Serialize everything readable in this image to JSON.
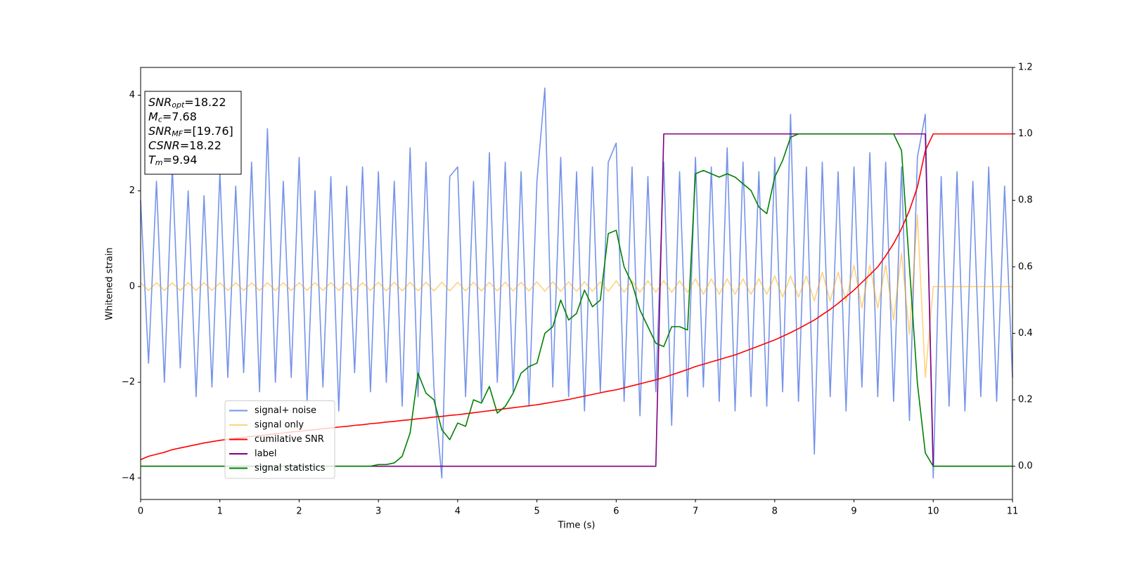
{
  "chart_data": {
    "type": "line",
    "xlabel": "Time (s)",
    "ylabel": "Whitened strain",
    "xlim": [
      0,
      11
    ],
    "xticks": [
      0,
      1,
      2,
      3,
      4,
      5,
      6,
      7,
      8,
      9,
      10,
      11
    ],
    "ylim": [
      -4.45,
      4.58
    ],
    "yticks": [
      {
        "value": -4,
        "label": "−4"
      },
      {
        "value": -2,
        "label": "−2"
      },
      0,
      2,
      4
    ],
    "y2lim": [
      -0.1,
      1.2
    ],
    "y2ticks": [
      {
        "value": 0,
        "label": "0.0"
      },
      0.2,
      0.4,
      0.6,
      0.8,
      {
        "value": 1,
        "label": "1.0"
      },
      1.2
    ],
    "legend": "lower left",
    "annotations": [
      {
        "main": "SNR",
        "sub": "opt",
        "text": "=18.22"
      },
      {
        "main": "M",
        "sub": "c",
        "text": "=7.68"
      },
      {
        "main": "SNR",
        "sub": "MF",
        "text": "=[19.76]"
      },
      {
        "main": "CSNR",
        "text": "=18.22"
      },
      {
        "main": "T",
        "sub": "m",
        "text": "=9.94"
      }
    ],
    "x": [
      0,
      0.1,
      0.2,
      0.3,
      0.4,
      0.5,
      0.6,
      0.7,
      0.8,
      0.9,
      1,
      1.1,
      1.2,
      1.3,
      1.4,
      1.5,
      1.6,
      1.7,
      1.8,
      1.9,
      2,
      2.1,
      2.2,
      2.3,
      2.4,
      2.5,
      2.6,
      2.7,
      2.8,
      2.9,
      3,
      3.1,
      3.2,
      3.3,
      3.4,
      3.5,
      3.6,
      3.7,
      3.8,
      3.9,
      4,
      4.1,
      4.2,
      4.3,
      4.4,
      4.5,
      4.6,
      4.7,
      4.8,
      4.9,
      5,
      5.1,
      5.2,
      5.3,
      5.4,
      5.5,
      5.6,
      5.7,
      5.8,
      5.9,
      6,
      6.1,
      6.2,
      6.3,
      6.4,
      6.5,
      6.6,
      6.7,
      6.8,
      6.9,
      7,
      7.1,
      7.2,
      7.3,
      7.4,
      7.5,
      7.6,
      7.7,
      7.8,
      7.9,
      8,
      8.1,
      8.2,
      8.3,
      8.4,
      8.5,
      8.6,
      8.7,
      8.8,
      8.9,
      9,
      9.1,
      9.2,
      9.3,
      9.4,
      9.5,
      9.6,
      9.7,
      9.8,
      9.9,
      10,
      10.1,
      10.2,
      10.3,
      10.4,
      10.5,
      10.6,
      10.7,
      10.8,
      10.9,
      11
    ],
    "series": [
      {
        "name": "signal+ noise",
        "color": "#4169e1",
        "alpha": 0.72,
        "values": [
          1.8,
          -1.6,
          2.2,
          -2.0,
          2.5,
          -1.7,
          2.0,
          -2.3,
          1.9,
          -2.1,
          2.4,
          -1.9,
          2.1,
          -1.8,
          2.6,
          -2.2,
          3.3,
          -2.0,
          2.2,
          -1.9,
          2.7,
          -2.4,
          2.0,
          -2.1,
          2.3,
          -2.6,
          2.1,
          -1.8,
          2.5,
          -2.2,
          2.4,
          -2.0,
          2.2,
          -2.5,
          2.9,
          -2.3,
          2.6,
          -2.1,
          -4.0,
          2.3,
          2.5,
          -2.3,
          2.2,
          -2.4,
          2.8,
          -2.0,
          2.6,
          -2.2,
          2.4,
          -2.5,
          2.2,
          4.15,
          -2.1,
          2.7,
          -2.3,
          2.4,
          -2.6,
          2.5,
          -2.2,
          2.6,
          3.0,
          -2.4,
          2.5,
          -2.7,
          2.3,
          -2.2,
          2.6,
          -2.9,
          2.4,
          -2.3,
          2.7,
          -2.1,
          2.5,
          -2.4,
          2.9,
          -2.6,
          2.6,
          -2.3,
          2.4,
          -2.5,
          2.7,
          -2.2,
          3.6,
          -2.4,
          2.5,
          -3.5,
          2.6,
          -2.3,
          2.4,
          -2.6,
          2.5,
          -2.1,
          2.8,
          -2.3,
          2.6,
          -2.4,
          2.5,
          -2.8,
          2.7,
          3.6,
          -4.0,
          2.3,
          -2.5,
          2.4,
          -2.6,
          2.2,
          -2.3,
          2.5,
          -2.4,
          2.1,
          -1.9
        ]
      },
      {
        "name": "signal only",
        "color": "#ffa500",
        "alpha": 0.5,
        "values": [
          0.08,
          -0.08,
          0.08,
          -0.08,
          0.08,
          -0.08,
          0.08,
          -0.08,
          0.08,
          -0.08,
          0.08,
          -0.08,
          0.08,
          -0.08,
          0.08,
          -0.08,
          0.08,
          -0.08,
          0.08,
          -0.08,
          0.08,
          -0.08,
          0.08,
          -0.08,
          0.08,
          -0.08,
          0.08,
          -0.08,
          0.08,
          -0.08,
          0.09,
          -0.09,
          0.09,
          -0.09,
          0.09,
          -0.09,
          0.09,
          -0.09,
          0.09,
          -0.09,
          0.09,
          -0.09,
          0.09,
          -0.09,
          0.09,
          -0.09,
          0.09,
          -0.09,
          0.09,
          -0.09,
          0.1,
          -0.1,
          0.1,
          -0.1,
          0.1,
          -0.1,
          0.1,
          -0.1,
          0.1,
          -0.1,
          0.12,
          -0.12,
          0.12,
          -0.12,
          0.12,
          -0.12,
          0.12,
          -0.12,
          0.12,
          -0.12,
          0.16,
          -0.16,
          0.16,
          -0.16,
          0.16,
          -0.16,
          0.16,
          -0.16,
          0.16,
          -0.16,
          0.22,
          -0.22,
          0.22,
          -0.22,
          0.22,
          -0.3,
          0.3,
          -0.3,
          0.3,
          -0.3,
          0.45,
          -0.45,
          0.45,
          -0.45,
          0.45,
          -0.7,
          0.7,
          -1.0,
          1.5,
          -1.9,
          0,
          0,
          0,
          0,
          0,
          0,
          0,
          0,
          0,
          0,
          0
        ]
      },
      {
        "name": "cumilative SNR",
        "color": "#ff0000",
        "axis": "y2",
        "values": [
          0.02,
          0.03,
          0.036,
          0.042,
          0.05,
          0.055,
          0.06,
          0.065,
          0.07,
          0.074,
          0.078,
          0.081,
          0.084,
          0.087,
          0.09,
          0.092,
          0.095,
          0.098,
          0.1,
          0.103,
          0.105,
          0.108,
          0.11,
          0.113,
          0.115,
          0.118,
          0.12,
          0.123,
          0.125,
          0.128,
          0.13,
          0.133,
          0.135,
          0.138,
          0.14,
          0.143,
          0.145,
          0.148,
          0.15,
          0.153,
          0.155,
          0.158,
          0.161,
          0.164,
          0.167,
          0.17,
          0.173,
          0.176,
          0.179,
          0.182,
          0.185,
          0.189,
          0.193,
          0.197,
          0.201,
          0.206,
          0.211,
          0.216,
          0.221,
          0.226,
          0.23,
          0.236,
          0.242,
          0.248,
          0.254,
          0.26,
          0.267,
          0.275,
          0.283,
          0.291,
          0.3,
          0.307,
          0.314,
          0.321,
          0.328,
          0.335,
          0.344,
          0.353,
          0.362,
          0.371,
          0.38,
          0.391,
          0.402,
          0.414,
          0.427,
          0.44,
          0.456,
          0.472,
          0.49,
          0.51,
          0.53,
          0.553,
          0.576,
          0.6,
          0.633,
          0.67,
          0.715,
          0.77,
          0.84,
          0.95,
          1,
          1,
          1,
          1,
          1,
          1,
          1,
          1,
          1,
          1,
          1
        ]
      },
      {
        "name": "label",
        "color": "#800080",
        "axis": "y2",
        "values": [
          0,
          0,
          0,
          0,
          0,
          0,
          0,
          0,
          0,
          0,
          0,
          0,
          0,
          0,
          0,
          0,
          0,
          0,
          0,
          0,
          0,
          0,
          0,
          0,
          0,
          0,
          0,
          0,
          0,
          0,
          0,
          0,
          0,
          0,
          0,
          0,
          0,
          0,
          0,
          0,
          0,
          0,
          0,
          0,
          0,
          0,
          0,
          0,
          0,
          0,
          0,
          0,
          0,
          0,
          0,
          0,
          0,
          0,
          0,
          0,
          0,
          0,
          0,
          0,
          0,
          0,
          1,
          1,
          1,
          1,
          1,
          1,
          1,
          1,
          1,
          1,
          1,
          1,
          1,
          1,
          1,
          1,
          1,
          1,
          1,
          1,
          1,
          1,
          1,
          1,
          1,
          1,
          1,
          1,
          1,
          1,
          1,
          1,
          1,
          1,
          0,
          0,
          0,
          0,
          0,
          0,
          0,
          0,
          0,
          0,
          0
        ]
      },
      {
        "name": "signal statistics",
        "color": "#008000",
        "axis": "y2",
        "values": [
          0,
          0,
          0,
          0,
          0,
          0,
          0,
          0,
          0,
          0,
          0,
          0,
          0,
          0,
          0,
          0,
          0,
          0,
          0,
          0,
          0,
          0,
          0,
          0,
          0,
          0,
          0,
          0,
          0,
          0,
          0.005,
          0.005,
          0.01,
          0.03,
          0.1,
          0.28,
          0.22,
          0.2,
          0.11,
          0.08,
          0.13,
          0.12,
          0.2,
          0.19,
          0.24,
          0.16,
          0.18,
          0.22,
          0.28,
          0.3,
          0.31,
          0.4,
          0.42,
          0.5,
          0.44,
          0.46,
          0.53,
          0.48,
          0.5,
          0.7,
          0.71,
          0.6,
          0.55,
          0.47,
          0.42,
          0.37,
          0.36,
          0.42,
          0.42,
          0.41,
          0.88,
          0.89,
          0.88,
          0.87,
          0.88,
          0.87,
          0.85,
          0.83,
          0.78,
          0.76,
          0.87,
          0.92,
          0.99,
          1,
          1,
          1,
          1,
          1,
          1,
          1,
          1,
          1,
          1,
          1,
          1,
          1,
          0.95,
          0.6,
          0.25,
          0.04,
          0,
          0,
          0,
          0,
          0,
          0,
          0,
          0,
          0,
          0,
          0
        ]
      }
    ]
  }
}
